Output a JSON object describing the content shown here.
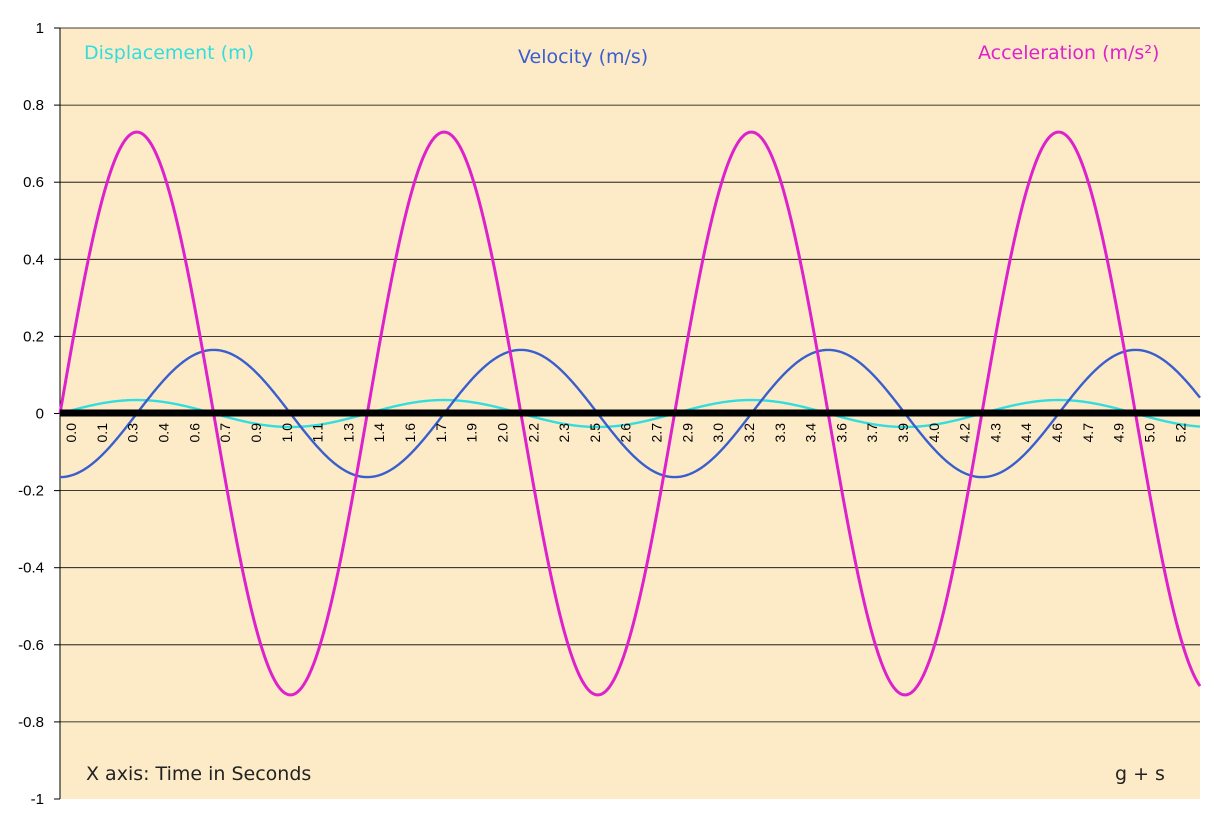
{
  "chart_data": {
    "type": "line",
    "title": "",
    "xlabel": "",
    "ylabel": "",
    "xlim": [
      0,
      5.3
    ],
    "ylim": [
      -1,
      1
    ],
    "grid": true,
    "x_tick_labels": [
      "0.0",
      "0.1",
      "0.3",
      "0.4",
      "0.6",
      "0.7",
      "0.9",
      "1.0",
      "1.1",
      "1.3",
      "1.4",
      "1.6",
      "1.7",
      "1.9",
      "2.0",
      "2.2",
      "2.3",
      "2.5",
      "2.6",
      "2.7",
      "2.9",
      "3.0",
      "3.2",
      "3.3",
      "3.4",
      "3.6",
      "3.7",
      "3.9",
      "4.0",
      "4.2",
      "4.3",
      "4.4",
      "4.6",
      "4.7",
      "4.9",
      "5.0",
      "5.2"
    ],
    "y_tick_labels": [
      "1",
      "0.8",
      "0.6",
      "0.4",
      "0.2",
      "0",
      "-0.2",
      "-0.4",
      "-0.6",
      "-0.8",
      "-1"
    ],
    "y_ticks": [
      1,
      0.8,
      0.6,
      0.4,
      0.2,
      0,
      -0.2,
      -0.4,
      -0.6,
      -0.8,
      -1
    ],
    "period": 1.4286,
    "series": [
      {
        "name": "Displacement (m)",
        "function": "sin",
        "amplitude": 0.035,
        "color": "#33dddd"
      },
      {
        "name": "Velocity (m/s)",
        "function": "-cos",
        "amplitude": 0.165,
        "color": "#3a5fcd"
      },
      {
        "name": "Acceleration (m/s²)",
        "function": "sin",
        "amplitude": 0.73,
        "color": "#dd22cc"
      }
    ],
    "annotations": [
      "X axis: Time in Seconds",
      "g + s"
    ],
    "background_color": "#fdebc8"
  }
}
